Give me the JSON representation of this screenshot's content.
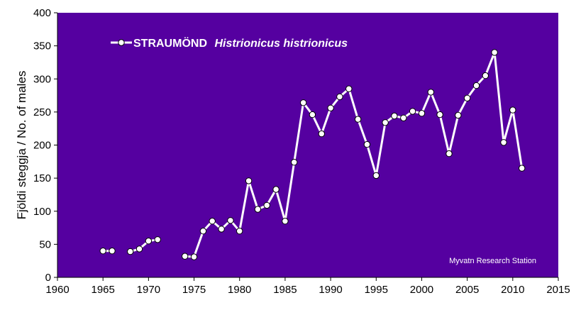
{
  "chart_data": {
    "type": "line",
    "ylabel": "Fjöldi steggja / No. of males",
    "xlim": [
      1960,
      2015
    ],
    "ylim": [
      0,
      400
    ],
    "x_ticks": [
      1960,
      1965,
      1970,
      1975,
      1980,
      1985,
      1990,
      1995,
      2000,
      2005,
      2010,
      2015
    ],
    "y_ticks": [
      0,
      50,
      100,
      150,
      200,
      250,
      300,
      350,
      400
    ],
    "grid": false,
    "legend_position": "top-left",
    "annotation": "Myvatn Research Station",
    "series": [
      {
        "name": "STRAUMÖND Histrionicus histrionicus",
        "name_parts": [
          "STRAUMÖND",
          "Histrionicus histrionicus"
        ],
        "segments": [
          [
            [
              1965,
              40
            ],
            [
              1966,
              40
            ]
          ],
          [
            [
              1968,
              39
            ],
            [
              1969,
              43
            ],
            [
              1970,
              55
            ],
            [
              1971,
              57
            ]
          ],
          [
            [
              1974,
              32
            ],
            [
              1975,
              31
            ],
            [
              1976,
              70
            ],
            [
              1977,
              85
            ],
            [
              1978,
              73
            ],
            [
              1979,
              86
            ],
            [
              1980,
              70
            ],
            [
              1981,
              146
            ],
            [
              1982,
              103
            ],
            [
              1983,
              109
            ],
            [
              1984,
              133
            ],
            [
              1985,
              85
            ],
            [
              1986,
              174
            ],
            [
              1987,
              264
            ],
            [
              1988,
              246
            ],
            [
              1989,
              217
            ],
            [
              1990,
              256
            ],
            [
              1991,
              273
            ],
            [
              1992,
              285
            ],
            [
              1993,
              239
            ],
            [
              1994,
              201
            ],
            [
              1995,
              154
            ],
            [
              1996,
              234
            ],
            [
              1997,
              244
            ],
            [
              1998,
              241
            ],
            [
              1999,
              251
            ],
            [
              2000,
              248
            ],
            [
              2001,
              280
            ],
            [
              2002,
              246
            ],
            [
              2003,
              187
            ],
            [
              2004,
              245
            ],
            [
              2005,
              271
            ],
            [
              2006,
              290
            ],
            [
              2007,
              305
            ],
            [
              2008,
              340
            ],
            [
              2009,
              204
            ],
            [
              2010,
              253
            ],
            [
              2011,
              165
            ]
          ]
        ]
      }
    ]
  },
  "colors": {
    "plot_background": "#5500a0",
    "line": "#ffffff",
    "marker_fill": "#ffffff",
    "marker_stroke": "#000000",
    "axis": "#000000",
    "text_on_plot": "#ffffff"
  }
}
